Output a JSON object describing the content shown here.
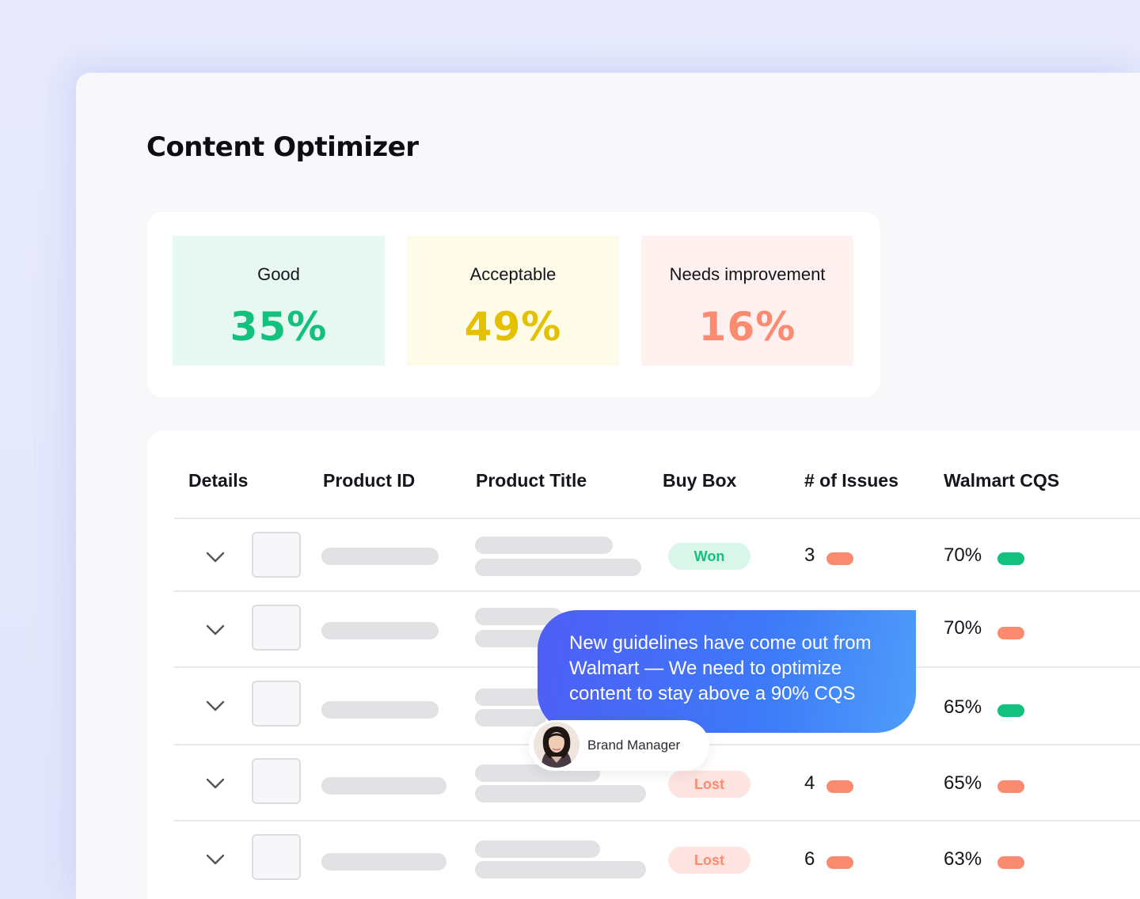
{
  "page": {
    "title": "Content Optimizer"
  },
  "stats": {
    "good": {
      "label": "Good",
      "value": "35%",
      "color": "#13c07e"
    },
    "acceptable": {
      "label": "Acceptable",
      "value": "49%",
      "color": "#e3c000"
    },
    "needs_improvement": {
      "label": "Needs improvement",
      "value": "16%",
      "color": "#fa8a70"
    }
  },
  "table": {
    "headers": [
      "Details",
      "Product ID",
      "Product Title",
      "Buy Box",
      "# of Issues",
      "Walmart CQS"
    ],
    "rows": [
      {
        "buy_box": "Won",
        "issues": "3",
        "issues_status": "red",
        "cqs": "70%",
        "cqs_status": "green"
      },
      {
        "buy_box": "",
        "issues": "",
        "issues_status": "",
        "cqs": "70%",
        "cqs_status": "red"
      },
      {
        "buy_box": "",
        "issues": "",
        "issues_status": "",
        "cqs": "65%",
        "cqs_status": "green"
      },
      {
        "buy_box": "Lost",
        "issues": "4",
        "issues_status": "red",
        "cqs": "65%",
        "cqs_status": "red"
      },
      {
        "buy_box": "Lost",
        "issues": "6",
        "issues_status": "red",
        "cqs": "63%",
        "cqs_status": "red"
      }
    ]
  },
  "message": {
    "text": "New guidelines have come out from Walmart — We need to optimize content to stay above a 90% CQS",
    "author": "Brand Manager"
  },
  "icons": {
    "expand": "chevron-down-icon",
    "avatar": "avatar"
  },
  "colors": {
    "good": "#13c07e",
    "acceptable": "#e3c000",
    "bad": "#fa8a70",
    "bubble_start": "#4f5ef6",
    "bubble_end": "#4f9dfa"
  }
}
